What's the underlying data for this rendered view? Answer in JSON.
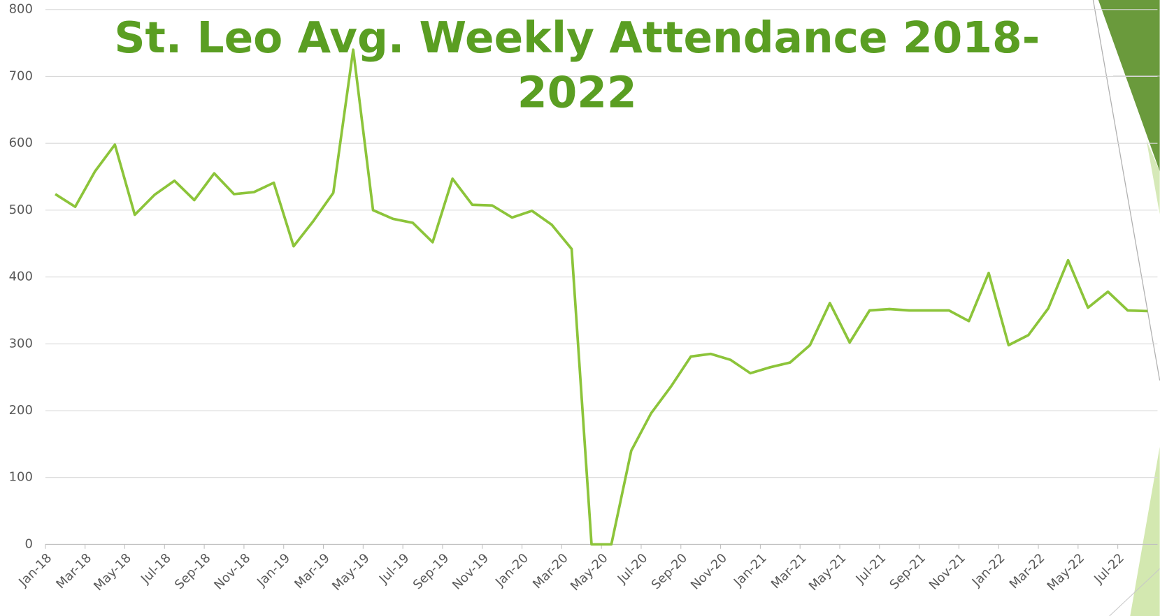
{
  "chart_data": {
    "type": "line",
    "title": "St. Leo Avg. Weekly Attendance 2018-2022",
    "categories": [
      "Jan-18",
      null,
      "Mar-18",
      null,
      "May-18",
      null,
      "Jul-18",
      null,
      "Sep-18",
      null,
      "Nov-18",
      null,
      "Jan-19",
      null,
      "Mar-19",
      null,
      "May-19",
      null,
      "Jul-19",
      null,
      "Sep-19",
      null,
      "Nov-19",
      null,
      "Jan-20",
      null,
      "Mar-20",
      null,
      "May-20",
      null,
      "Jul-20",
      null,
      "Sep-20",
      null,
      "Nov-20",
      null,
      "Jan-21",
      null,
      "Mar-21",
      null,
      "May-21",
      null,
      "Jul-21",
      null,
      "Sep-21",
      null,
      "Nov-21",
      null,
      "Jan-22",
      null,
      "Mar-22",
      null,
      "May-22",
      null,
      "Jul-22",
      null
    ],
    "values": [
      524,
      505,
      558,
      598,
      493,
      523,
      544,
      515,
      555,
      524,
      527,
      541,
      446,
      484,
      526,
      740,
      500,
      487,
      481,
      452,
      547,
      508,
      507,
      489,
      499,
      478,
      442,
      0,
      0,
      140,
      196,
      236,
      281,
      285,
      276,
      256,
      265,
      272,
      298,
      361,
      302,
      350,
      352,
      350,
      350,
      350,
      334,
      406,
      298,
      313,
      353,
      425,
      354,
      378,
      350,
      349
    ],
    "color": "#8cc43a",
    "ylim": [
      0,
      800
    ],
    "yticks": [
      0,
      100,
      200,
      300,
      400,
      500,
      600,
      700,
      800
    ],
    "grid": true
  }
}
